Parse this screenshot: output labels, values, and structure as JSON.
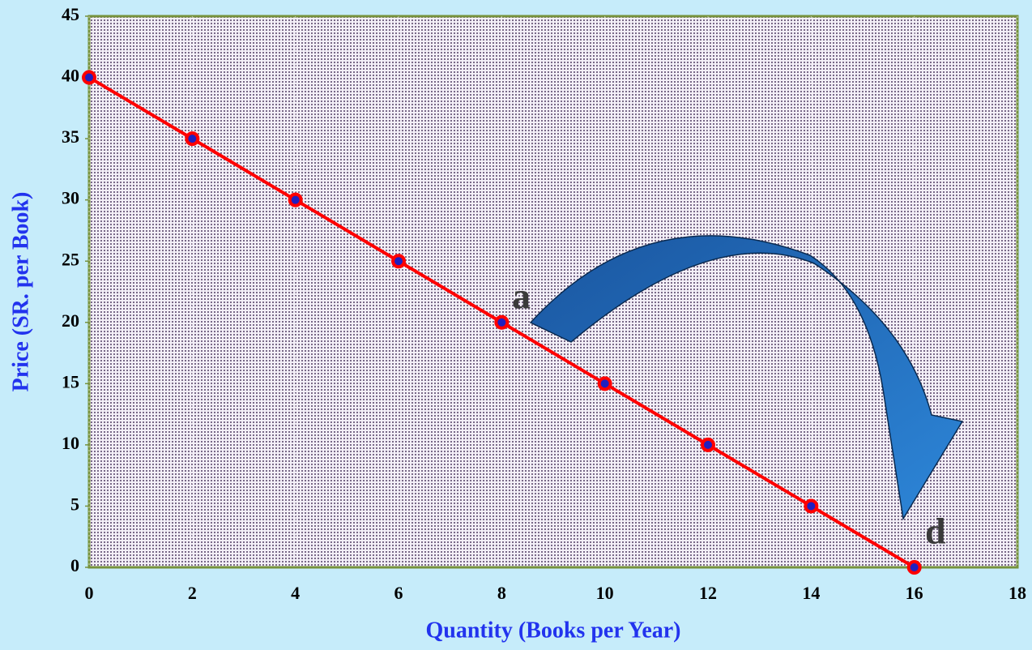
{
  "chart_data": {
    "type": "line",
    "x": [
      0,
      2,
      4,
      6,
      8,
      10,
      12,
      14,
      16
    ],
    "series": [
      {
        "color": "#ff0000",
        "values": [
          40,
          35,
          30,
          25,
          20,
          15,
          10,
          5,
          0
        ]
      }
    ],
    "xlabel": "Quantity (Books per Year)",
    "ylabel": "Price (SR. per Book)",
    "xlim": [
      0,
      18
    ],
    "xticks": [
      0,
      2,
      4,
      6,
      8,
      10,
      12,
      14,
      16,
      18
    ],
    "ylim": [
      0,
      45
    ],
    "yticks": [
      0,
      5,
      10,
      15,
      20,
      25,
      30,
      35,
      40,
      45
    ],
    "annotations": [
      "a",
      "d"
    ]
  }
}
